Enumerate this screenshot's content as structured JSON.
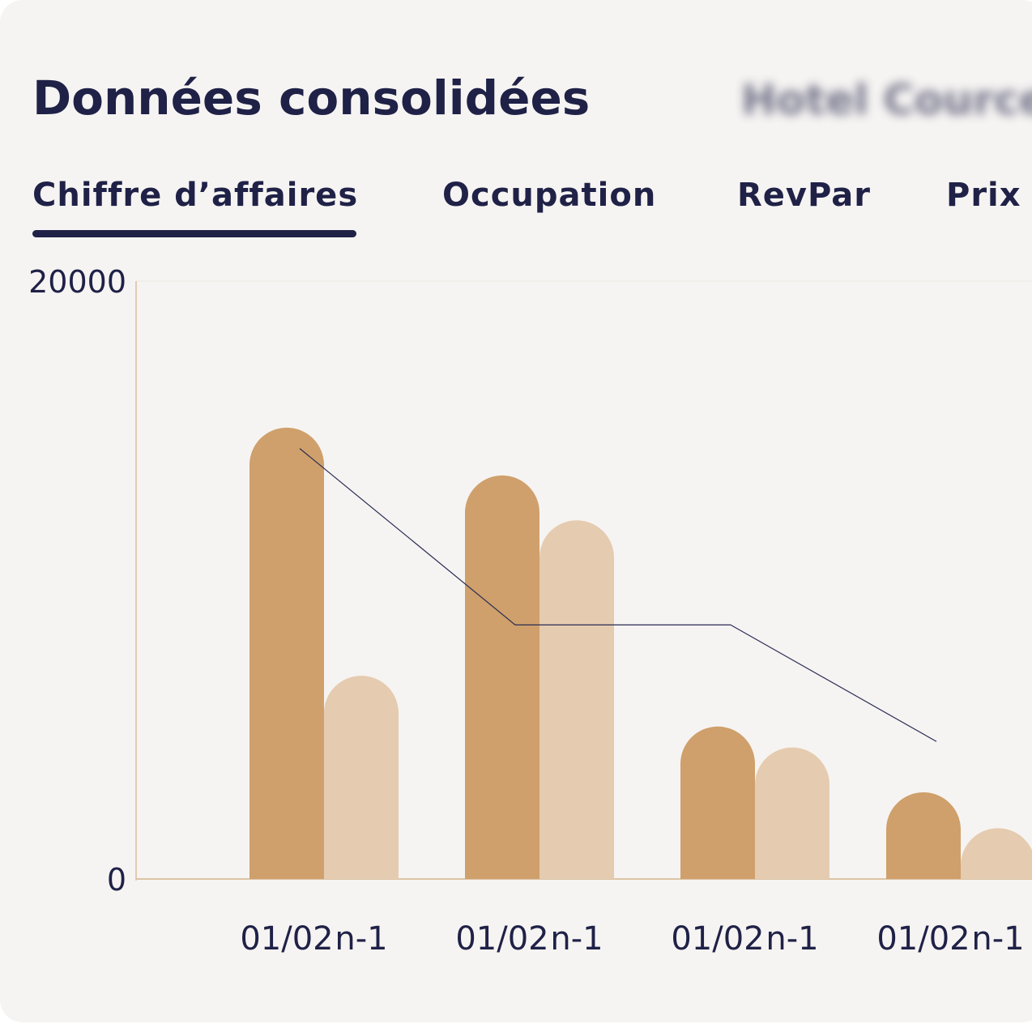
{
  "header": {
    "title": "Données consolidées",
    "subtitle": "Hotel Cource"
  },
  "tabs": {
    "items": [
      "Chiffre d’affaires",
      "Occupation",
      "RevPar",
      "Prix"
    ],
    "active": 0
  },
  "chart_data": {
    "type": "bar",
    "categories": [
      null,
      null,
      null,
      null
    ],
    "series": [
      {
        "name": "01/02",
        "color": "#cfa06b",
        "values": [
          15100,
          13500,
          5100,
          2900
        ]
      },
      {
        "name": "n-1",
        "color": "#e5cbb0",
        "values": [
          6800,
          12000,
          4400,
          1700
        ]
      },
      {
        "type": "line",
        "color": "#2b2d55",
        "values": [
          14400,
          8500,
          8500,
          4600
        ]
      }
    ],
    "ylim": [
      0,
      20000
    ],
    "yticks": [
      0,
      20000
    ]
  }
}
